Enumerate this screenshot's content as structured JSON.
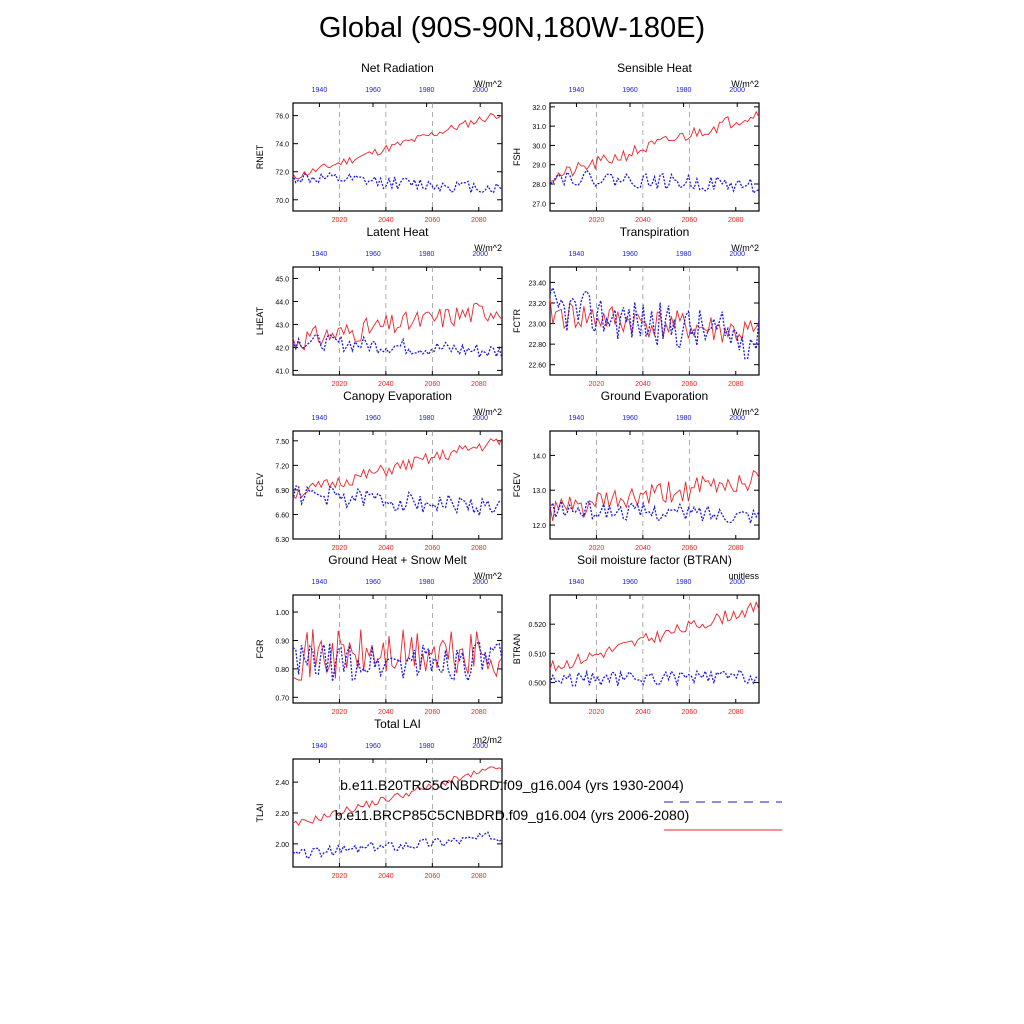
{
  "title": "Global (90S-90N,180W-180E)",
  "colors": {
    "rcp": "#e8262b",
    "hist": "#1a1adf",
    "grid": "#888888",
    "axis": "#000000"
  },
  "legend": [
    {
      "label": "b.e11.B20TRC5CNBDRD.f09_g16.004 (yrs 1930-2004)",
      "series": "hist",
      "style": "dashed"
    },
    {
      "label": "b.e11.BRCP85C5CNBDRD.f09_g16.004 (yrs 2006-2080)",
      "series": "rcp",
      "style": "solid"
    }
  ],
  "chart_data": [
    {
      "type": "line",
      "title": "Net Radiation",
      "units": "W/m^2",
      "ylabel": "RNET",
      "ylim": [
        69.2,
        76.9
      ],
      "yticks": [
        "70.0",
        "72.0",
        "74.0",
        "76.0"
      ],
      "xlabel_bottom_ticks": [
        "2020",
        "2040",
        "2060",
        "2080"
      ],
      "xlabel_top_ticks": [
        "1940",
        "1960",
        "1980",
        "2000"
      ],
      "series": [
        {
          "name": "rcp",
          "start": 71.6,
          "end": 76.2,
          "noise": 0.3,
          "seed": 11
        },
        {
          "name": "hist",
          "start": 71.6,
          "end": 70.8,
          "noise": 0.45,
          "seed": 12
        }
      ]
    },
    {
      "type": "line",
      "title": "Sensible Heat",
      "units": "W/m^2",
      "ylabel": "FSH",
      "ylim": [
        26.6,
        32.2
      ],
      "yticks": [
        "27.0",
        "28.0",
        "29.0",
        "30.0",
        "31.0",
        "32.0"
      ],
      "xlabel_bottom_ticks": [
        "2020",
        "2040",
        "2060",
        "2080"
      ],
      "xlabel_top_ticks": [
        "1940",
        "1960",
        "1980",
        "2000"
      ],
      "series": [
        {
          "name": "rcp",
          "start": 28.3,
          "end": 31.7,
          "noise": 0.35,
          "seed": 21
        },
        {
          "name": "hist",
          "start": 28.4,
          "end": 27.9,
          "noise": 0.4,
          "seed": 22
        }
      ]
    },
    {
      "type": "line",
      "title": "Latent Heat",
      "units": "W/m^2",
      "ylabel": "LHEAT",
      "ylim": [
        40.8,
        45.5
      ],
      "yticks": [
        "41.0",
        "42.0",
        "43.0",
        "44.0",
        "45.0"
      ],
      "xlabel_bottom_ticks": [
        "2020",
        "2040",
        "2060",
        "2080"
      ],
      "xlabel_top_ticks": [
        "1940",
        "1960",
        "1980",
        "2000"
      ],
      "series": [
        {
          "name": "rcp",
          "start": 42.3,
          "end": 43.7,
          "noise": 0.5,
          "seed": 31
        },
        {
          "name": "hist",
          "start": 42.3,
          "end": 41.8,
          "noise": 0.35,
          "seed": 32
        }
      ]
    },
    {
      "type": "line",
      "title": "Transpiration",
      "units": "W/m^2",
      "ylabel": "FCTR",
      "ylim": [
        22.5,
        23.55
      ],
      "yticks": [
        "22.60",
        "22.80",
        "23.00",
        "23.20",
        "23.40"
      ],
      "xlabel_bottom_ticks": [
        "2020",
        "2040",
        "2060",
        "2080"
      ],
      "xlabel_top_ticks": [
        "1940",
        "1960",
        "1980",
        "2000"
      ],
      "series": [
        {
          "name": "rcp",
          "start": 23.1,
          "end": 22.9,
          "noise": 0.15,
          "seed": 41
        },
        {
          "name": "hist",
          "start": 23.15,
          "end": 22.85,
          "noise": 0.22,
          "seed": 42
        }
      ]
    },
    {
      "type": "line",
      "title": "Canopy Evaporation",
      "units": "W/m^2",
      "ylabel": "FCEV",
      "ylim": [
        6.3,
        7.62
      ],
      "yticks": [
        "6.30",
        "6.60",
        "6.90",
        "7.20",
        "7.50"
      ],
      "xlabel_bottom_ticks": [
        "2020",
        "2040",
        "2060",
        "2080"
      ],
      "xlabel_top_ticks": [
        "1940",
        "1960",
        "1980",
        "2000"
      ],
      "series": [
        {
          "name": "rcp",
          "start": 6.85,
          "end": 7.5,
          "noise": 0.08,
          "seed": 51
        },
        {
          "name": "hist",
          "start": 6.85,
          "end": 6.68,
          "noise": 0.12,
          "seed": 52
        }
      ]
    },
    {
      "type": "line",
      "title": "Ground Evaporation",
      "units": "W/m^2",
      "ylabel": "FGEV",
      "ylim": [
        11.6,
        14.7
      ],
      "yticks": [
        "12.0",
        "13.0",
        "14.0"
      ],
      "xlabel_bottom_ticks": [
        "2020",
        "2040",
        "2060",
        "2080"
      ],
      "xlabel_top_ticks": [
        "1940",
        "1960",
        "1980",
        "2000"
      ],
      "series": [
        {
          "name": "rcp",
          "start": 12.4,
          "end": 13.3,
          "noise": 0.35,
          "seed": 61
        },
        {
          "name": "hist",
          "start": 12.45,
          "end": 12.3,
          "noise": 0.25,
          "seed": 62
        }
      ]
    },
    {
      "type": "line",
      "title": "Ground Heat + Snow Melt",
      "units": "W/m^2",
      "ylabel": "FGR",
      "ylim": [
        0.68,
        1.06
      ],
      "yticks": [
        "0.70",
        "0.80",
        "0.90",
        "1.00"
      ],
      "xlabel_bottom_ticks": [
        "2020",
        "2040",
        "2060",
        "2080"
      ],
      "xlabel_top_ticks": [
        "1940",
        "1960",
        "1980",
        "2000"
      ],
      "series": [
        {
          "name": "rcp",
          "start": 0.85,
          "end": 0.85,
          "noise": 0.09,
          "seed": 71
        },
        {
          "name": "hist",
          "start": 0.82,
          "end": 0.83,
          "noise": 0.07,
          "seed": 72
        }
      ]
    },
    {
      "type": "line",
      "title": "Soil moisture factor (BTRAN)",
      "units": "unitless",
      "ylabel": "BTRAN",
      "ylim": [
        0.493,
        0.53
      ],
      "yticks": [
        "0.500",
        "0.510",
        "0.520"
      ],
      "xlabel_bottom_ticks": [
        "2020",
        "2040",
        "2060",
        "2080"
      ],
      "xlabel_top_ticks": [
        "1940",
        "1960",
        "1980",
        "2000"
      ],
      "series": [
        {
          "name": "rcp",
          "start": 0.505,
          "end": 0.526,
          "noise": 0.0022,
          "seed": 81
        },
        {
          "name": "hist",
          "start": 0.501,
          "end": 0.502,
          "noise": 0.0025,
          "seed": 82
        }
      ]
    },
    {
      "type": "line",
      "title": "Total LAI",
      "units": "m2/m2",
      "ylabel": "TLAI",
      "ylim": [
        1.85,
        2.55
      ],
      "yticks": [
        "2.00",
        "2.20",
        "2.40"
      ],
      "xlabel_bottom_ticks": [
        "2020",
        "2040",
        "2060",
        "2080"
      ],
      "xlabel_top_ticks": [
        "1940",
        "1960",
        "1980",
        "2000"
      ],
      "series": [
        {
          "name": "rcp",
          "start": 2.12,
          "end": 2.5,
          "noise": 0.025,
          "seed": 91
        },
        {
          "name": "hist",
          "start": 1.93,
          "end": 2.05,
          "noise": 0.035,
          "seed": 92
        }
      ]
    }
  ]
}
